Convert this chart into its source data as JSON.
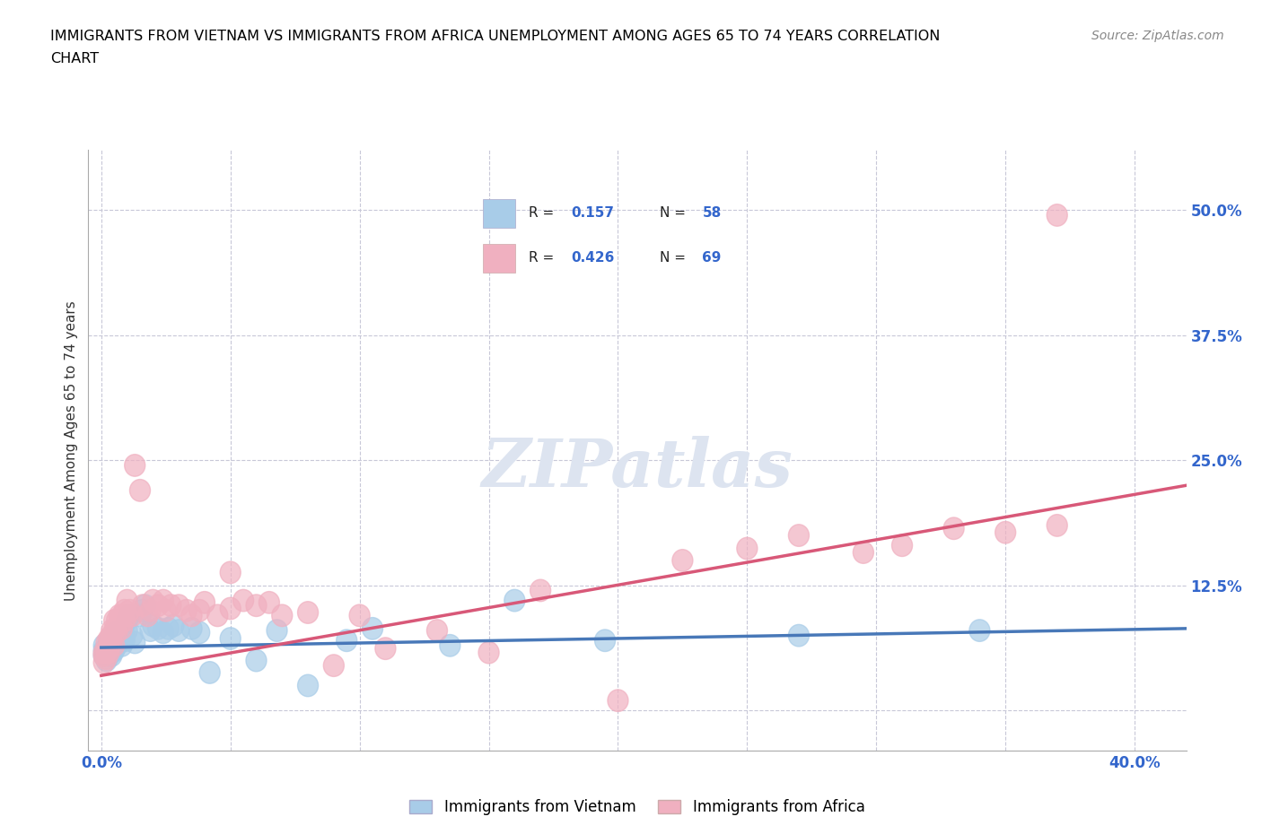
{
  "title_line1": "IMMIGRANTS FROM VIETNAM VS IMMIGRANTS FROM AFRICA UNEMPLOYMENT AMONG AGES 65 TO 74 YEARS CORRELATION",
  "title_line2": "CHART",
  "source": "Source: ZipAtlas.com",
  "ylabel": "Unemployment Among Ages 65 to 74 years",
  "y_ticks_right": [
    0.0,
    0.125,
    0.25,
    0.375,
    0.5
  ],
  "y_tick_labels_right": [
    "",
    "12.5%",
    "25.0%",
    "37.5%",
    "50.0%"
  ],
  "ylim": [
    -0.04,
    0.56
  ],
  "xlim": [
    -0.005,
    0.42
  ],
  "watermark": "ZIPatlas",
  "vietnam_color": "#a8cce8",
  "africa_color": "#f0b0c0",
  "vietnam_line_color": "#4878b8",
  "africa_line_color": "#d85878",
  "blue_text_color": "#3366cc",
  "bg_color": "#ffffff",
  "grid_color": "#c8c8d8",
  "watermark_color": "#dde4f0",
  "vietnam_R": "0.157",
  "vietnam_N": "58",
  "africa_R": "0.426",
  "africa_N": "69",
  "series_vietnam_x": [
    0.001,
    0.001,
    0.001,
    0.002,
    0.002,
    0.002,
    0.002,
    0.002,
    0.003,
    0.003,
    0.003,
    0.003,
    0.003,
    0.004,
    0.004,
    0.004,
    0.004,
    0.004,
    0.005,
    0.005,
    0.005,
    0.006,
    0.006,
    0.007,
    0.007,
    0.008,
    0.008,
    0.009,
    0.009,
    0.01,
    0.01,
    0.011,
    0.012,
    0.013,
    0.015,
    0.016,
    0.017,
    0.019,
    0.02,
    0.022,
    0.024,
    0.026,
    0.028,
    0.03,
    0.035,
    0.038,
    0.042,
    0.05,
    0.06,
    0.068,
    0.08,
    0.095,
    0.105,
    0.135,
    0.16,
    0.195,
    0.27,
    0.34
  ],
  "series_vietnam_y": [
    0.065,
    0.055,
    0.06,
    0.06,
    0.055,
    0.06,
    0.058,
    0.05,
    0.06,
    0.055,
    0.065,
    0.058,
    0.068,
    0.06,
    0.072,
    0.058,
    0.055,
    0.065,
    0.068,
    0.075,
    0.06,
    0.065,
    0.078,
    0.07,
    0.072,
    0.065,
    0.08,
    0.07,
    0.075,
    0.08,
    0.09,
    0.095,
    0.075,
    0.068,
    0.095,
    0.1,
    0.105,
    0.08,
    0.085,
    0.082,
    0.078,
    0.082,
    0.085,
    0.08,
    0.082,
    0.078,
    0.038,
    0.072,
    0.05,
    0.08,
    0.025,
    0.07,
    0.082,
    0.065,
    0.11,
    0.07,
    0.075,
    0.08
  ],
  "series_africa_x": [
    0.001,
    0.001,
    0.001,
    0.002,
    0.002,
    0.002,
    0.002,
    0.003,
    0.003,
    0.003,
    0.003,
    0.003,
    0.004,
    0.004,
    0.004,
    0.005,
    0.005,
    0.005,
    0.006,
    0.006,
    0.007,
    0.007,
    0.008,
    0.008,
    0.009,
    0.009,
    0.01,
    0.01,
    0.011,
    0.012,
    0.013,
    0.015,
    0.016,
    0.018,
    0.019,
    0.02,
    0.022,
    0.024,
    0.025,
    0.027,
    0.03,
    0.033,
    0.035,
    0.038,
    0.04,
    0.045,
    0.05,
    0.055,
    0.06,
    0.065,
    0.07,
    0.08,
    0.09,
    0.1,
    0.11,
    0.13,
    0.15,
    0.17,
    0.2,
    0.225,
    0.25,
    0.27,
    0.295,
    0.31,
    0.33,
    0.35,
    0.37,
    0.05,
    0.37
  ],
  "series_africa_y": [
    0.055,
    0.048,
    0.058,
    0.058,
    0.052,
    0.068,
    0.06,
    0.058,
    0.065,
    0.07,
    0.072,
    0.062,
    0.075,
    0.068,
    0.08,
    0.065,
    0.08,
    0.09,
    0.078,
    0.09,
    0.095,
    0.085,
    0.082,
    0.095,
    0.09,
    0.1,
    0.095,
    0.11,
    0.1,
    0.095,
    0.245,
    0.22,
    0.105,
    0.095,
    0.1,
    0.11,
    0.105,
    0.11,
    0.1,
    0.105,
    0.105,
    0.1,
    0.095,
    0.1,
    0.108,
    0.095,
    0.102,
    0.11,
    0.105,
    0.108,
    0.095,
    0.098,
    0.045,
    0.095,
    0.062,
    0.08,
    0.058,
    0.12,
    0.01,
    0.15,
    0.162,
    0.175,
    0.158,
    0.165,
    0.182,
    0.178,
    0.185,
    0.138,
    0.495
  ],
  "vietnam_trend_x": [
    0.0,
    0.42
  ],
  "vietnam_trend_y": [
    0.063,
    0.082
  ],
  "africa_trend_x": [
    0.0,
    0.42
  ],
  "africa_trend_y": [
    0.035,
    0.225
  ]
}
